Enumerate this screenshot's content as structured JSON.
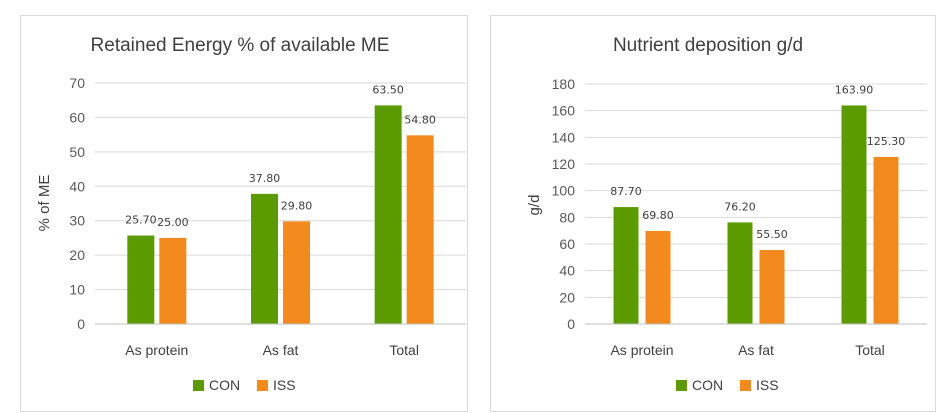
{
  "chart_data": [
    {
      "type": "bar",
      "title": "Retained Energy % of available ME",
      "xlabel": "",
      "ylabel": "% of ME",
      "ylim": [
        0,
        70
      ],
      "yticks": [
        0,
        10,
        20,
        30,
        40,
        50,
        60,
        70
      ],
      "categories": [
        "As protein",
        "As fat",
        "Total"
      ],
      "series": [
        {
          "name": "CON",
          "color": "#5b9b00",
          "values": [
            25.7,
            37.8,
            63.5
          ],
          "labels": [
            "25.70",
            "37.80",
            "63.50"
          ]
        },
        {
          "name": "ISS",
          "color": "#f28a1e",
          "values": [
            25.0,
            29.8,
            54.8
          ],
          "labels": [
            "25.00",
            "29.80",
            "54.80"
          ]
        }
      ],
      "grid": true,
      "legend": "bottom"
    },
    {
      "type": "bar",
      "title": "Nutrient deposition g/d",
      "xlabel": "",
      "ylabel": "g/d",
      "ylim": [
        0,
        180
      ],
      "yticks": [
        0,
        20,
        40,
        60,
        80,
        100,
        120,
        140,
        160,
        180
      ],
      "categories": [
        "As protein",
        "As fat",
        "Total"
      ],
      "series": [
        {
          "name": "CON",
          "color": "#5b9b00",
          "values": [
            87.7,
            76.2,
            163.9
          ],
          "labels": [
            "87.70",
            "76.20",
            "163.90"
          ]
        },
        {
          "name": "ISS",
          "color": "#f28a1e",
          "values": [
            69.8,
            55.5,
            125.3
          ],
          "labels": [
            "69.80",
            "55.50",
            "125.30"
          ]
        }
      ],
      "grid": true,
      "legend": "bottom"
    }
  ]
}
